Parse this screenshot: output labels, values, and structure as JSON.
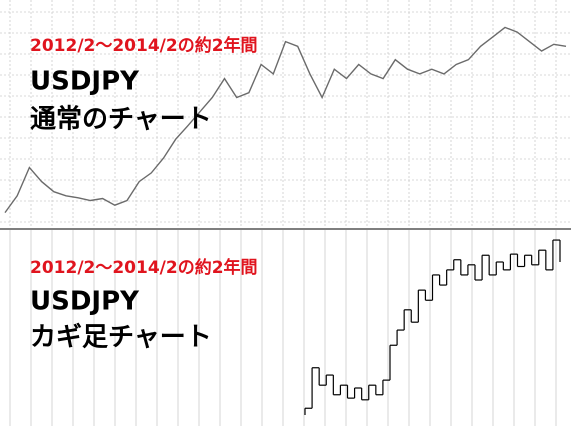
{
  "chart_data": [
    {
      "type": "line",
      "subtitle": "2012/2〜2014/2の約2年間",
      "title": "USDJPY",
      "label": "通常のチャート",
      "color": "#6b6b6b",
      "grid": true,
      "ylim": [
        76.5,
        106.5
      ],
      "values": [
        77.6,
        80.1,
        84.3,
        82.2,
        80.7,
        80.1,
        79.8,
        79.4,
        79.7,
        78.7,
        79.4,
        82.2,
        83.5,
        85.7,
        88.5,
        90.5,
        92.6,
        94.7,
        97.5,
        94.7,
        95.4,
        99.6,
        98.2,
        103.0,
        102.3,
        98.2,
        94.7,
        98.9,
        97.5,
        99.6,
        98.2,
        97.5,
        100.3,
        98.9,
        98.2,
        98.9,
        98.2,
        99.6,
        100.3,
        102.3,
        103.7,
        105.1,
        104.4,
        103.0,
        101.6,
        102.6,
        102.3
      ]
    },
    {
      "type": "kagi",
      "subtitle": "2012/2〜2014/2の約2年間",
      "title": "USDJPY",
      "label": "カギ足チャート",
      "color": "#000000",
      "grid": true,
      "ylim": [
        75,
        107
      ],
      "values": [
        76.2,
        83.4,
        80.3,
        82.1,
        78.6,
        80.3,
        78.0,
        79.8,
        77.7,
        80.3,
        78.6,
        81.2,
        87.4,
        90.1,
        93.7,
        91.5,
        97.2,
        95.4,
        99.9,
        98.1,
        100.8,
        102.6,
        99.9,
        101.7,
        99.0,
        103.4,
        99.9,
        102.2,
        100.8,
        103.6,
        101.4,
        103.4,
        101.7,
        104.3,
        100.8,
        106.1,
        102.2
      ]
    }
  ]
}
